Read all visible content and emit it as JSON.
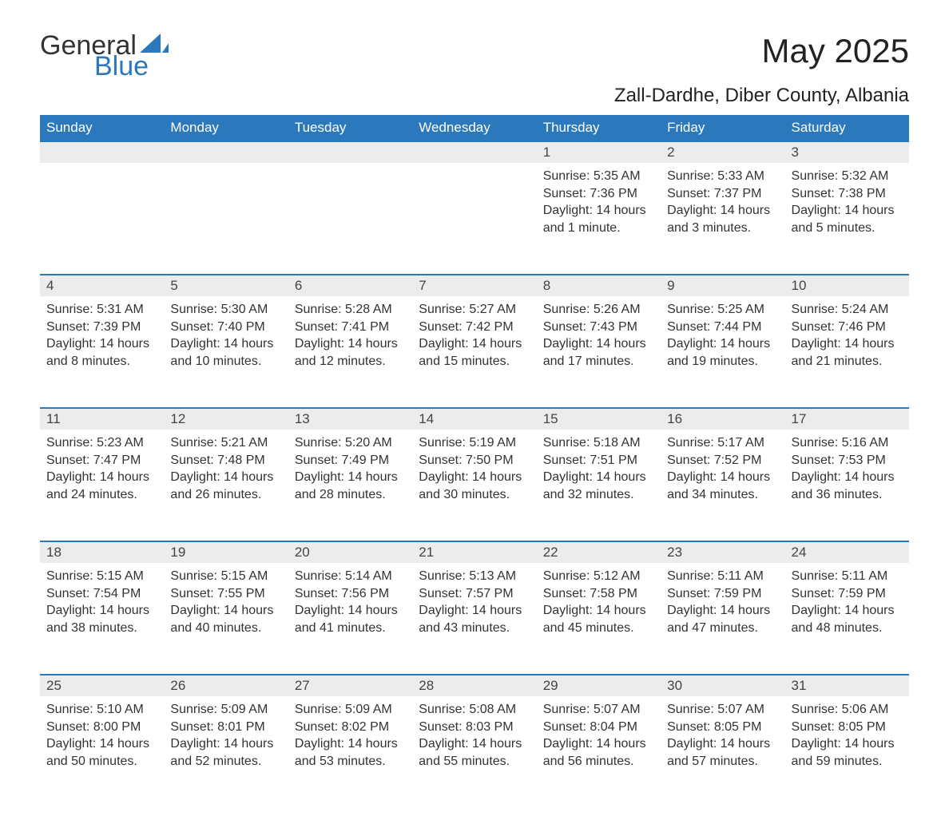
{
  "logo": {
    "word1": "General",
    "word2": "Blue",
    "accent_color": "#2c78bd"
  },
  "title": "May 2025",
  "location": "Zall-Dardhe, Diber County, Albania",
  "colors": {
    "header_bg": "#2c78bd",
    "header_text": "#ffffff",
    "daynum_bg": "#ececec",
    "row_border": "#2c78bd",
    "text": "#333333",
    "page_bg": "#ffffff"
  },
  "weekdays": [
    "Sunday",
    "Monday",
    "Tuesday",
    "Wednesday",
    "Thursday",
    "Friday",
    "Saturday"
  ],
  "weeks": [
    [
      null,
      null,
      null,
      null,
      {
        "n": "1",
        "sr": "Sunrise: 5:35 AM",
        "ss": "Sunset: 7:36 PM",
        "dl": "Daylight: 14 hours and 1 minute."
      },
      {
        "n": "2",
        "sr": "Sunrise: 5:33 AM",
        "ss": "Sunset: 7:37 PM",
        "dl": "Daylight: 14 hours and 3 minutes."
      },
      {
        "n": "3",
        "sr": "Sunrise: 5:32 AM",
        "ss": "Sunset: 7:38 PM",
        "dl": "Daylight: 14 hours and 5 minutes."
      }
    ],
    [
      {
        "n": "4",
        "sr": "Sunrise: 5:31 AM",
        "ss": "Sunset: 7:39 PM",
        "dl": "Daylight: 14 hours and 8 minutes."
      },
      {
        "n": "5",
        "sr": "Sunrise: 5:30 AM",
        "ss": "Sunset: 7:40 PM",
        "dl": "Daylight: 14 hours and 10 minutes."
      },
      {
        "n": "6",
        "sr": "Sunrise: 5:28 AM",
        "ss": "Sunset: 7:41 PM",
        "dl": "Daylight: 14 hours and 12 minutes."
      },
      {
        "n": "7",
        "sr": "Sunrise: 5:27 AM",
        "ss": "Sunset: 7:42 PM",
        "dl": "Daylight: 14 hours and 15 minutes."
      },
      {
        "n": "8",
        "sr": "Sunrise: 5:26 AM",
        "ss": "Sunset: 7:43 PM",
        "dl": "Daylight: 14 hours and 17 minutes."
      },
      {
        "n": "9",
        "sr": "Sunrise: 5:25 AM",
        "ss": "Sunset: 7:44 PM",
        "dl": "Daylight: 14 hours and 19 minutes."
      },
      {
        "n": "10",
        "sr": "Sunrise: 5:24 AM",
        "ss": "Sunset: 7:46 PM",
        "dl": "Daylight: 14 hours and 21 minutes."
      }
    ],
    [
      {
        "n": "11",
        "sr": "Sunrise: 5:23 AM",
        "ss": "Sunset: 7:47 PM",
        "dl": "Daylight: 14 hours and 24 minutes."
      },
      {
        "n": "12",
        "sr": "Sunrise: 5:21 AM",
        "ss": "Sunset: 7:48 PM",
        "dl": "Daylight: 14 hours and 26 minutes."
      },
      {
        "n": "13",
        "sr": "Sunrise: 5:20 AM",
        "ss": "Sunset: 7:49 PM",
        "dl": "Daylight: 14 hours and 28 minutes."
      },
      {
        "n": "14",
        "sr": "Sunrise: 5:19 AM",
        "ss": "Sunset: 7:50 PM",
        "dl": "Daylight: 14 hours and 30 minutes."
      },
      {
        "n": "15",
        "sr": "Sunrise: 5:18 AM",
        "ss": "Sunset: 7:51 PM",
        "dl": "Daylight: 14 hours and 32 minutes."
      },
      {
        "n": "16",
        "sr": "Sunrise: 5:17 AM",
        "ss": "Sunset: 7:52 PM",
        "dl": "Daylight: 14 hours and 34 minutes."
      },
      {
        "n": "17",
        "sr": "Sunrise: 5:16 AM",
        "ss": "Sunset: 7:53 PM",
        "dl": "Daylight: 14 hours and 36 minutes."
      }
    ],
    [
      {
        "n": "18",
        "sr": "Sunrise: 5:15 AM",
        "ss": "Sunset: 7:54 PM",
        "dl": "Daylight: 14 hours and 38 minutes."
      },
      {
        "n": "19",
        "sr": "Sunrise: 5:15 AM",
        "ss": "Sunset: 7:55 PM",
        "dl": "Daylight: 14 hours and 40 minutes."
      },
      {
        "n": "20",
        "sr": "Sunrise: 5:14 AM",
        "ss": "Sunset: 7:56 PM",
        "dl": "Daylight: 14 hours and 41 minutes."
      },
      {
        "n": "21",
        "sr": "Sunrise: 5:13 AM",
        "ss": "Sunset: 7:57 PM",
        "dl": "Daylight: 14 hours and 43 minutes."
      },
      {
        "n": "22",
        "sr": "Sunrise: 5:12 AM",
        "ss": "Sunset: 7:58 PM",
        "dl": "Daylight: 14 hours and 45 minutes."
      },
      {
        "n": "23",
        "sr": "Sunrise: 5:11 AM",
        "ss": "Sunset: 7:59 PM",
        "dl": "Daylight: 14 hours and 47 minutes."
      },
      {
        "n": "24",
        "sr": "Sunrise: 5:11 AM",
        "ss": "Sunset: 7:59 PM",
        "dl": "Daylight: 14 hours and 48 minutes."
      }
    ],
    [
      {
        "n": "25",
        "sr": "Sunrise: 5:10 AM",
        "ss": "Sunset: 8:00 PM",
        "dl": "Daylight: 14 hours and 50 minutes."
      },
      {
        "n": "26",
        "sr": "Sunrise: 5:09 AM",
        "ss": "Sunset: 8:01 PM",
        "dl": "Daylight: 14 hours and 52 minutes."
      },
      {
        "n": "27",
        "sr": "Sunrise: 5:09 AM",
        "ss": "Sunset: 8:02 PM",
        "dl": "Daylight: 14 hours and 53 minutes."
      },
      {
        "n": "28",
        "sr": "Sunrise: 5:08 AM",
        "ss": "Sunset: 8:03 PM",
        "dl": "Daylight: 14 hours and 55 minutes."
      },
      {
        "n": "29",
        "sr": "Sunrise: 5:07 AM",
        "ss": "Sunset: 8:04 PM",
        "dl": "Daylight: 14 hours and 56 minutes."
      },
      {
        "n": "30",
        "sr": "Sunrise: 5:07 AM",
        "ss": "Sunset: 8:05 PM",
        "dl": "Daylight: 14 hours and 57 minutes."
      },
      {
        "n": "31",
        "sr": "Sunrise: 5:06 AM",
        "ss": "Sunset: 8:05 PM",
        "dl": "Daylight: 14 hours and 59 minutes."
      }
    ]
  ]
}
